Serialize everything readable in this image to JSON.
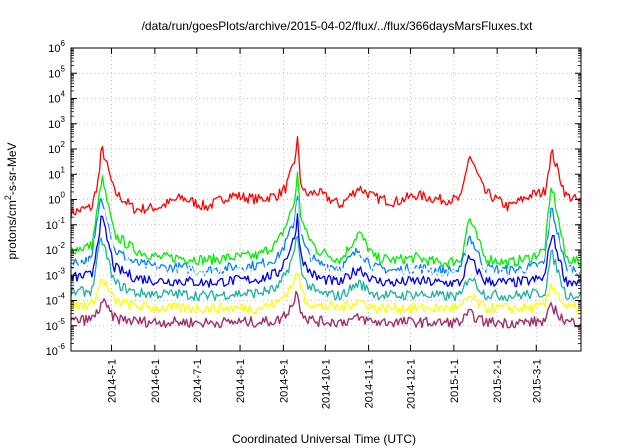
{
  "chart_data": {
    "type": "line",
    "title": "/data/run/goesPlots/archive/2015-04-02/flux/../flux/366daysMarsFluxes.txt",
    "xlabel": "Coordinated Universal Time (UTC)",
    "ylabel_prefix": "protons/cm",
    "ylabel_sup": "2",
    "ylabel_suffix": "-s-sr-MeV",
    "yscale": "log",
    "ylim": [
      1e-06,
      1000000.0
    ],
    "xlim": [
      "2014-04-02",
      "2015-04-02"
    ],
    "grid": true,
    "x_ticks": [
      {
        "label": "2014-5-1",
        "date": "2014-05-01"
      },
      {
        "label": "2014-6-1",
        "date": "2014-06-01"
      },
      {
        "label": "2014-7-1",
        "date": "2014-07-01"
      },
      {
        "label": "2014-8-1",
        "date": "2014-08-01"
      },
      {
        "label": "2014-9-1",
        "date": "2014-09-01"
      },
      {
        "label": "2014-10-1",
        "date": "2014-10-01"
      },
      {
        "label": "2014-11-1",
        "date": "2014-11-01"
      },
      {
        "label": "2014-12-1",
        "date": "2014-12-01"
      },
      {
        "label": "2015-1-1",
        "date": "2015-01-01"
      },
      {
        "label": "2015-2-1",
        "date": "2015-02-01"
      },
      {
        "label": "2015-3-1",
        "date": "2015-03-01"
      }
    ],
    "y_ticks": [
      {
        "base": "10",
        "exp": "-6",
        "value": 1e-06
      },
      {
        "base": "10",
        "exp": "-5",
        "value": 1e-05
      },
      {
        "base": "10",
        "exp": "-4",
        "value": 0.0001
      },
      {
        "base": "10",
        "exp": "-3",
        "value": 0.001
      },
      {
        "base": "10",
        "exp": "-2",
        "value": 0.01
      },
      {
        "base": "10",
        "exp": "-1",
        "value": 0.1
      },
      {
        "base": "10",
        "exp": "0",
        "value": 1
      },
      {
        "base": "10",
        "exp": "1",
        "value": 10
      },
      {
        "base": "10",
        "exp": "2",
        "value": 100
      },
      {
        "base": "10",
        "exp": "3",
        "value": 1000
      },
      {
        "base": "10",
        "exp": "4",
        "value": 10000
      },
      {
        "base": "10",
        "exp": "5",
        "value": 100000
      },
      {
        "base": "10",
        "exp": "6",
        "value": 1000000
      }
    ],
    "x": [
      "2014-04-02",
      "2014-04-17",
      "2014-04-22",
      "2014-04-24",
      "2014-05-03",
      "2014-05-18",
      "2014-06-04",
      "2014-06-20",
      "2014-07-08",
      "2014-07-25",
      "2014-08-14",
      "2014-08-28",
      "2014-09-03",
      "2014-09-09",
      "2014-09-11",
      "2014-09-13",
      "2014-09-17",
      "2014-09-25",
      "2014-10-12",
      "2014-10-25",
      "2014-11-05",
      "2014-11-20",
      "2014-12-05",
      "2014-12-22",
      "2015-01-06",
      "2015-01-12",
      "2015-01-23",
      "2015-02-09",
      "2015-02-25",
      "2015-03-07",
      "2015-03-12",
      "2015-03-22",
      "2015-04-02"
    ],
    "series": [
      {
        "color": "#ff0000",
        "values": [
          0.3,
          0.5,
          8,
          120,
          2,
          0.4,
          0.5,
          1.2,
          0.5,
          1.5,
          1,
          1.5,
          3,
          30,
          300,
          6,
          1.5,
          2,
          0.6,
          3,
          1.2,
          0.8,
          1.5,
          1,
          1,
          60,
          2,
          0.5,
          1.5,
          2,
          80,
          1.5,
          0.8
        ]
      },
      {
        "color": "#00ee00",
        "values": [
          0.01,
          0.015,
          1,
          8,
          0.04,
          0.01,
          0.005,
          0.005,
          0.004,
          0.005,
          0.006,
          0.02,
          0.1,
          0.8,
          12,
          0.3,
          0.05,
          0.01,
          0.004,
          0.05,
          0.005,
          0.004,
          0.005,
          0.003,
          0.004,
          0.2,
          0.005,
          0.003,
          0.005,
          0.01,
          4,
          0.005,
          0.003
        ]
      },
      {
        "color": "#0080ff",
        "values": [
          0.003,
          0.004,
          0.5,
          1.5,
          0.01,
          0.003,
          0.002,
          0.002,
          0.0015,
          0.002,
          0.0025,
          0.005,
          0.02,
          0.15,
          2,
          0.05,
          0.01,
          0.003,
          0.002,
          0.01,
          0.002,
          0.0015,
          0.002,
          0.0015,
          0.0015,
          0.04,
          0.002,
          0.0015,
          0.002,
          0.003,
          0.5,
          0.002,
          0.0015
        ]
      },
      {
        "color": "#ffffff",
        "values": [
          0.002,
          0.0025,
          0.2,
          0.6,
          0.006,
          0.002,
          0.0015,
          0.0015,
          0.001,
          0.0015,
          0.0015,
          0.003,
          0.012,
          0.08,
          0.8,
          0.03,
          0.006,
          0.002,
          0.0012,
          0.006,
          0.0015,
          0.001,
          0.0015,
          0.001,
          0.001,
          0.02,
          0.0015,
          0.001,
          0.0015,
          0.002,
          0.2,
          0.0015,
          0.001
        ]
      },
      {
        "color": "#0000ee",
        "values": [
          0.0008,
          0.001,
          0.05,
          0.2,
          0.002,
          0.0008,
          0.0006,
          0.0006,
          0.0005,
          0.0006,
          0.0007,
          0.0012,
          0.005,
          0.03,
          0.25,
          0.01,
          0.002,
          0.0008,
          0.0005,
          0.002,
          0.0006,
          0.0005,
          0.0006,
          0.0005,
          0.0005,
          0.005,
          0.0006,
          0.0005,
          0.0006,
          0.0008,
          0.05,
          0.0006,
          0.0005
        ]
      },
      {
        "color": "#20b0a0",
        "values": [
          0.0002,
          0.00025,
          0.01,
          0.03,
          0.0005,
          0.0002,
          0.00018,
          0.00018,
          0.00015,
          0.00018,
          0.0002,
          0.0003,
          0.0012,
          0.008,
          0.05,
          0.003,
          0.0005,
          0.0002,
          0.00015,
          0.0005,
          0.00018,
          0.00015,
          0.00018,
          0.00015,
          0.00015,
          0.001,
          0.00018,
          0.00015,
          0.00018,
          0.0002,
          0.008,
          0.00018,
          0.00015
        ]
      },
      {
        "color": "#ffff00",
        "values": [
          6e-05,
          7e-05,
          0.0003,
          0.0008,
          0.0001,
          6e-05,
          5e-05,
          5e-05,
          5e-05,
          5e-05,
          5e-05,
          8e-05,
          0.0002,
          0.0006,
          0.0015,
          0.0004,
          0.0001,
          6e-05,
          5e-05,
          0.0001,
          5e-05,
          5e-05,
          5e-05,
          5e-05,
          5e-05,
          0.00015,
          5e-05,
          5e-05,
          5e-05,
          6e-05,
          0.0005,
          5e-05,
          5e-05
        ]
      },
      {
        "color": "#a0306a",
        "values": [
          1.5e-05,
          1.8e-05,
          4e-05,
          0.0001,
          2e-05,
          1.5e-05,
          1.4e-05,
          1.4e-05,
          1.3e-05,
          1.4e-05,
          1.4e-05,
          1.6e-05,
          3e-05,
          0.0001,
          0.0003,
          5e-05,
          2e-05,
          1.5e-05,
          1.4e-05,
          2e-05,
          1.4e-05,
          1.4e-05,
          1.4e-05,
          1.3e-05,
          1.4e-05,
          3e-05,
          1.4e-05,
          1.3e-05,
          1.4e-05,
          1.5e-05,
          6e-05,
          1.4e-05,
          1.4e-05
        ]
      }
    ]
  }
}
